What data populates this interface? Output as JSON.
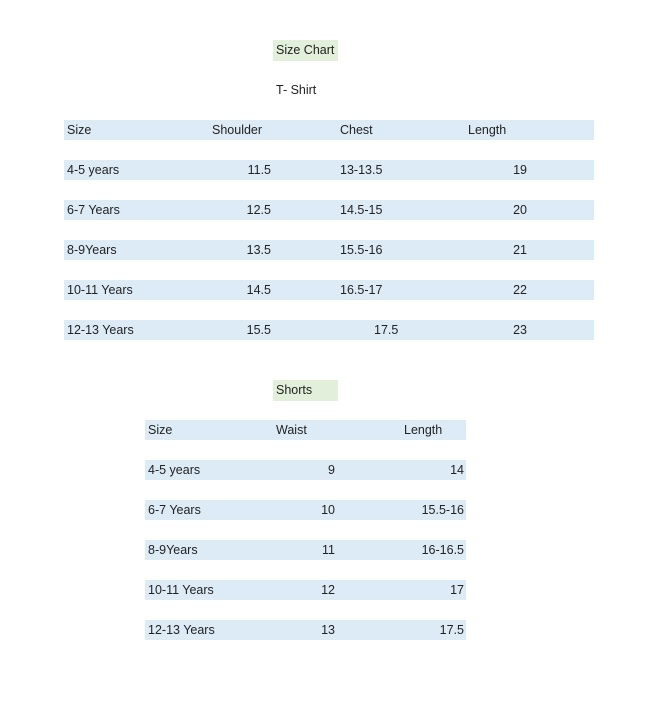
{
  "title": "Size Chart",
  "tshirt": {
    "heading": "T- Shirt",
    "headers": [
      "Size",
      "Shoulder",
      "Chest",
      "Length"
    ],
    "rows": [
      [
        "4-5 years",
        "11.5",
        "13-13.5",
        "19"
      ],
      [
        "6-7 Years",
        "12.5",
        "14.5-15",
        "20"
      ],
      [
        "8-9Years",
        "13.5",
        "15.5-16",
        "21"
      ],
      [
        "10-11 Years",
        "14.5",
        "16.5-17",
        "22"
      ],
      [
        "12-13 Years",
        "15.5",
        "17.5",
        "23"
      ]
    ]
  },
  "shorts": {
    "heading": "Shorts",
    "headers": [
      "Size",
      "Waist",
      "Length"
    ],
    "rows": [
      [
        "4-5 years",
        "9",
        "14"
      ],
      [
        "6-7 Years",
        "10",
        "15.5-16"
      ],
      [
        "8-9Years",
        "11",
        "16-16.5"
      ],
      [
        "10-11 Years",
        "12",
        "17"
      ],
      [
        "12-13 Years",
        "13",
        "17.5"
      ]
    ]
  },
  "colors": {
    "row_fill": "#ddebf7",
    "title_fill": "#e2efda"
  }
}
